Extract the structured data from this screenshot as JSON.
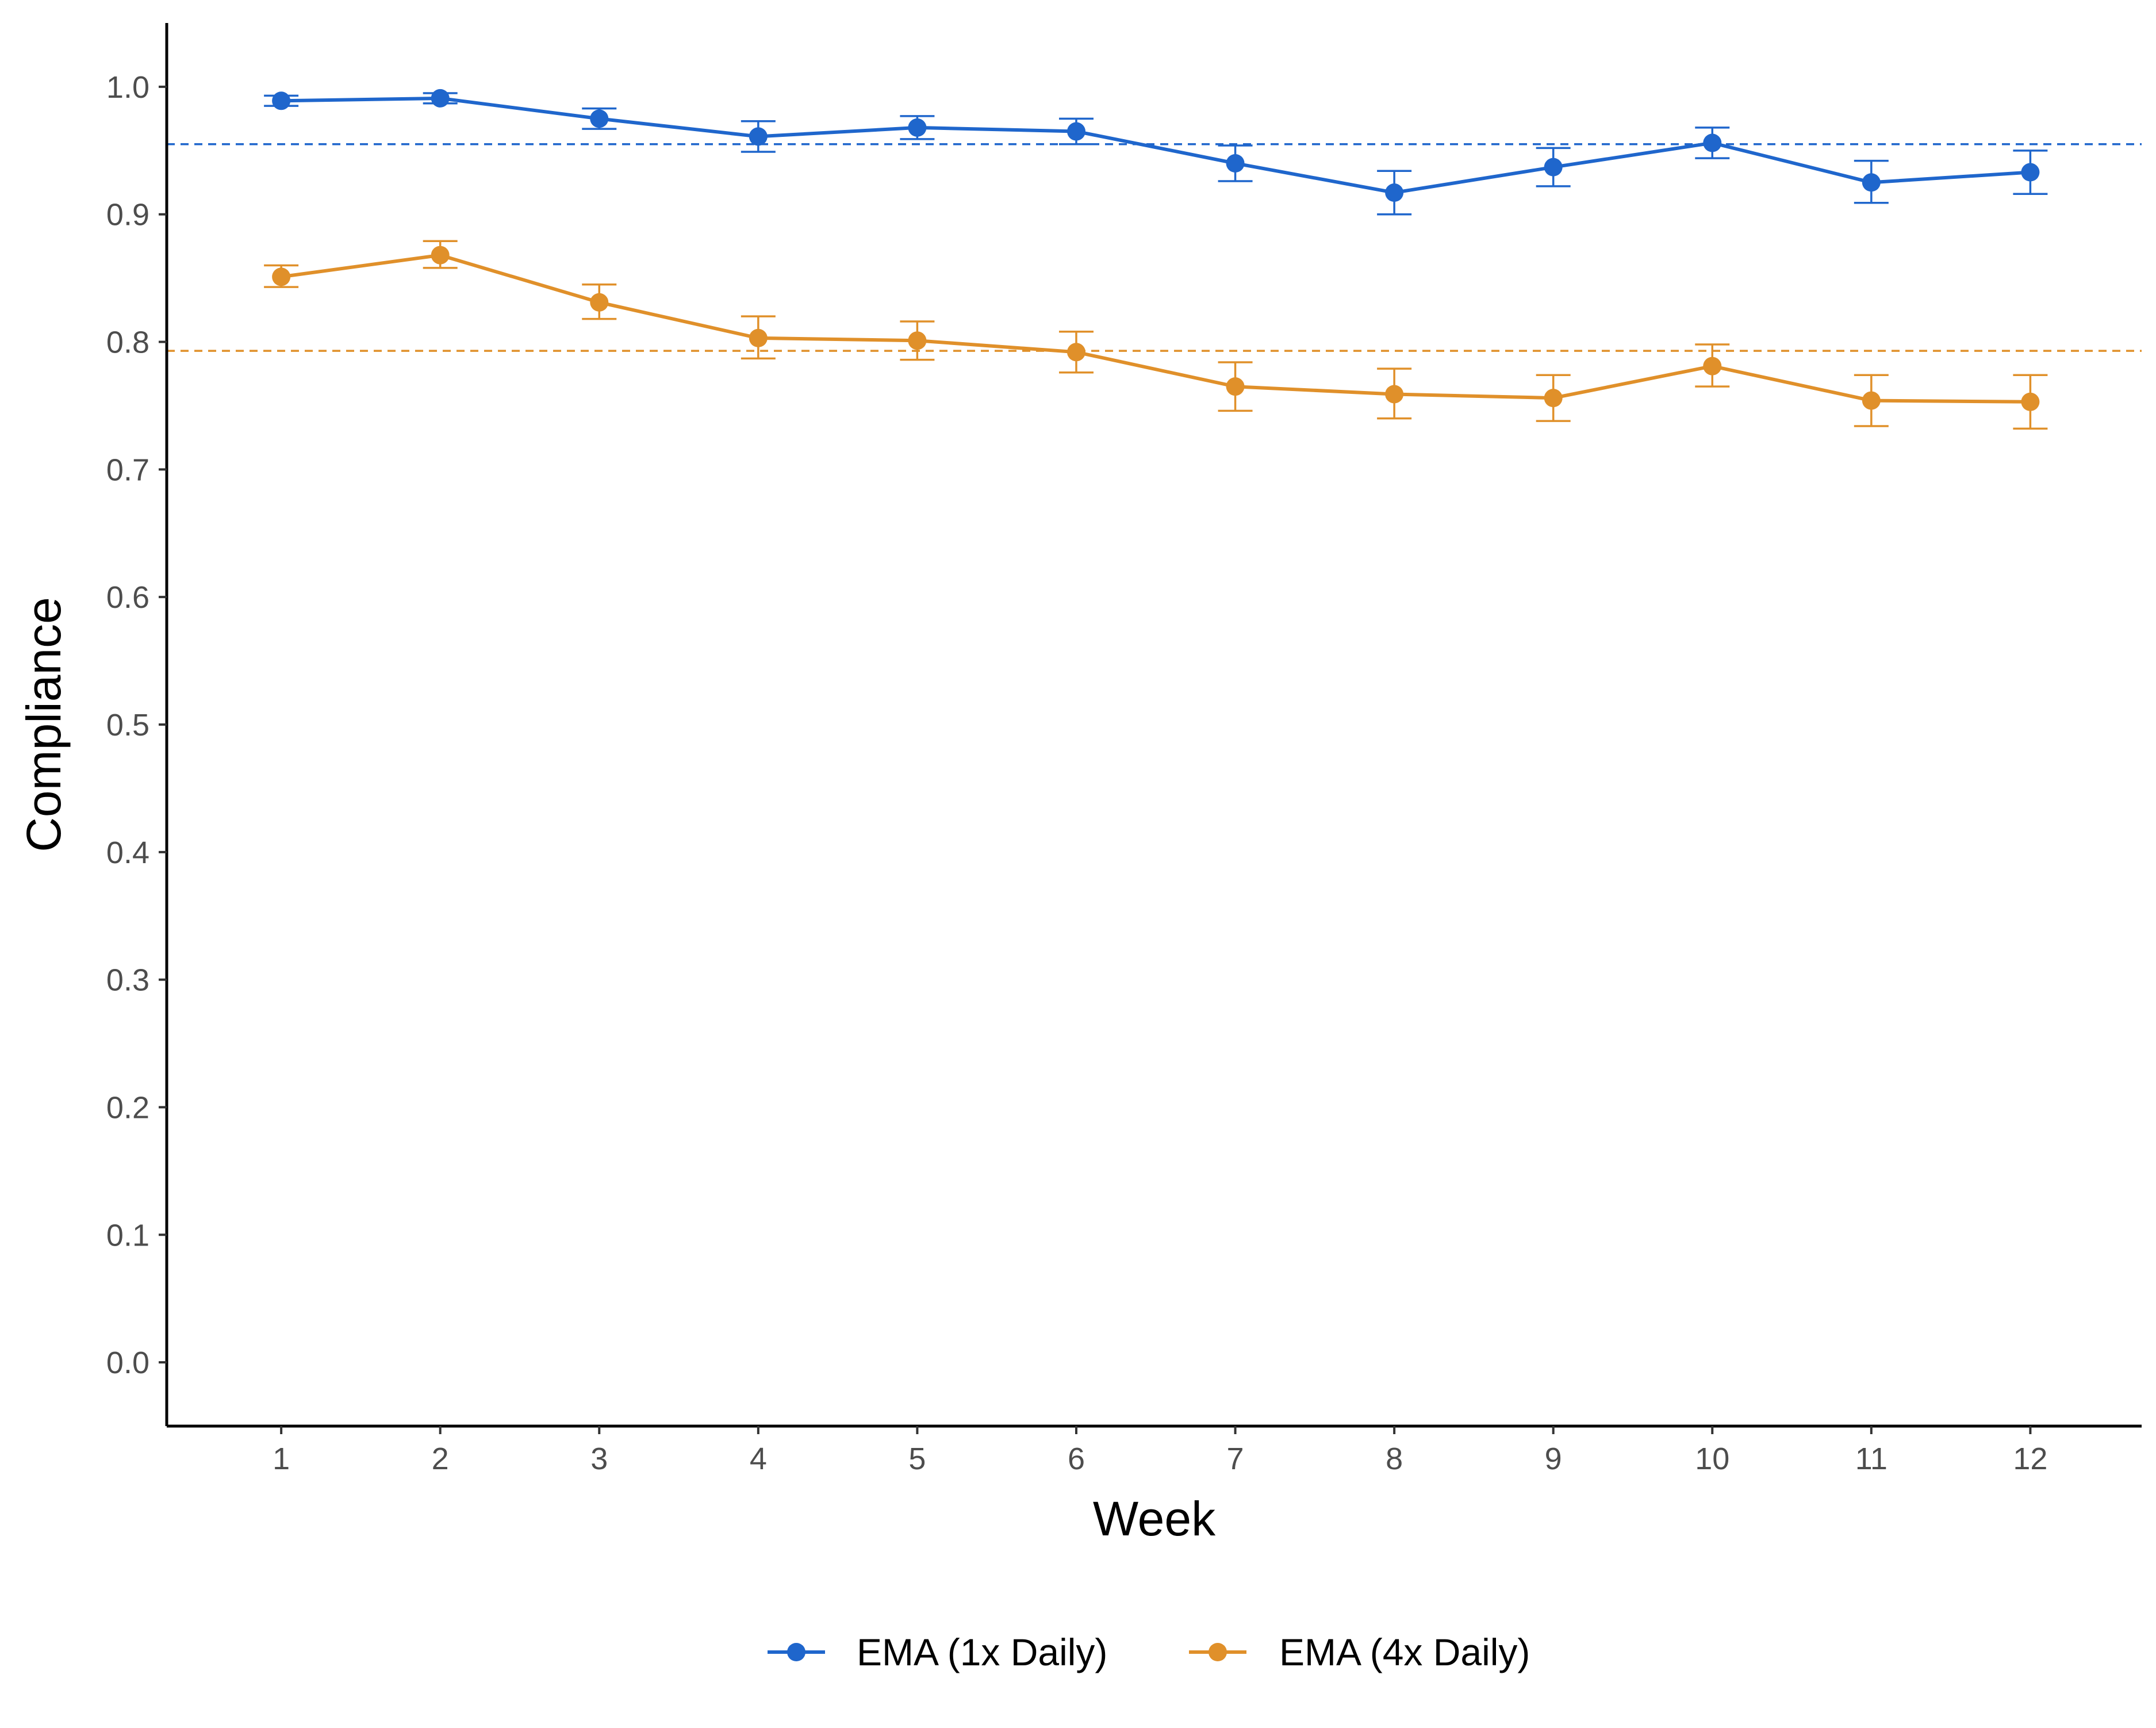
{
  "chart_data": {
    "type": "line",
    "title": "",
    "xlabel": "Week",
    "ylabel": "Compliance",
    "x": [
      1,
      2,
      3,
      4,
      5,
      6,
      7,
      8,
      9,
      10,
      11,
      12
    ],
    "x_tick_labels": [
      "1",
      "2",
      "3",
      "4",
      "5",
      "6",
      "7",
      "8",
      "9",
      "10",
      "11",
      "12"
    ],
    "y_tick_values": [
      0.0,
      0.1,
      0.2,
      0.3,
      0.4,
      0.5,
      0.6,
      0.7,
      0.8,
      0.9,
      1.0
    ],
    "y_tick_labels": [
      "0.0",
      "0.1",
      "0.2",
      "0.3",
      "0.4",
      "0.5",
      "0.6",
      "0.7",
      "0.8",
      "0.9",
      "1.0"
    ],
    "xlim": [
      0.28,
      12.7
    ],
    "ylim": [
      -0.05,
      1.05
    ],
    "grid": false,
    "legend_position": "bottom",
    "series": [
      {
        "name": "EMA (1x Daily)",
        "color": "#1f66cc",
        "values": [
          0.989,
          0.991,
          0.975,
          0.961,
          0.968,
          0.965,
          0.94,
          0.917,
          0.937,
          0.956,
          0.925,
          0.933
        ],
        "error_lower": [
          0.985,
          0.987,
          0.967,
          0.949,
          0.959,
          0.955,
          0.926,
          0.9,
          0.922,
          0.944,
          0.909,
          0.916
        ],
        "error_upper": [
          0.993,
          0.995,
          0.983,
          0.973,
          0.977,
          0.975,
          0.954,
          0.934,
          0.952,
          0.968,
          0.942,
          0.95
        ],
        "reference_line": 0.955
      },
      {
        "name": "EMA (4x Daily)",
        "color": "#e0902a",
        "values": [
          0.851,
          0.868,
          0.831,
          0.803,
          0.801,
          0.792,
          0.765,
          0.759,
          0.756,
          0.781,
          0.754,
          0.753
        ],
        "error_lower": [
          0.843,
          0.858,
          0.818,
          0.787,
          0.786,
          0.776,
          0.746,
          0.74,
          0.738,
          0.765,
          0.734,
          0.732
        ],
        "error_upper": [
          0.86,
          0.879,
          0.845,
          0.82,
          0.816,
          0.808,
          0.784,
          0.779,
          0.774,
          0.798,
          0.774,
          0.774
        ],
        "reference_line": 0.793
      }
    ]
  }
}
